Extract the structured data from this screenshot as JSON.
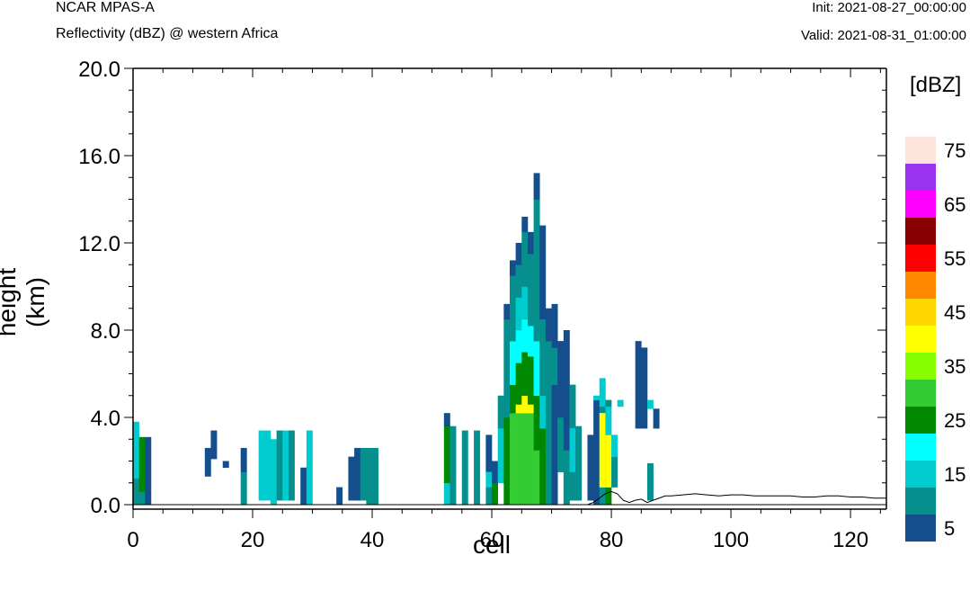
{
  "header": {
    "title": "NCAR MPAS-A",
    "subtitle": "Reflectivity (dBZ) @ western Africa",
    "init": "Init: 2021-08-27_00:00:00",
    "valid": "Valid: 2021-08-31_01:00:00"
  },
  "chart_data": {
    "type": "heatmap",
    "title": "",
    "xlabel": "cell",
    "ylabel": "height (km)",
    "xlim": [
      0,
      126
    ],
    "ylim": [
      0,
      20
    ],
    "x_ticks": [
      0,
      20,
      40,
      60,
      80,
      100,
      120
    ],
    "x_tick_labels": [
      "0",
      "20",
      "40",
      "60",
      "80",
      "100",
      "120"
    ],
    "y_ticks": [
      0,
      4,
      8,
      12,
      16,
      20
    ],
    "y_tick_labels": [
      "0.0",
      "4.0",
      "8.0",
      "12.0",
      "16.0",
      "20.0"
    ],
    "colorbar": {
      "units": "[dBZ]",
      "levels": [
        5,
        10,
        15,
        20,
        25,
        30,
        35,
        40,
        45,
        50,
        55,
        60,
        65,
        70,
        75
      ],
      "labels": [
        "5",
        "15",
        "25",
        "35",
        "45",
        "55",
        "65",
        "75"
      ],
      "colors": [
        "#144e8c",
        "#05908e",
        "#00cccf",
        "#00ffff",
        "#008800",
        "#33cc33",
        "#88ff00",
        "#ffff00",
        "#ffd700",
        "#ff8800",
        "#ff0000",
        "#880000",
        "#ff00ff",
        "#9933ee",
        "#ffe4dc"
      ]
    },
    "cells": [
      [
        0,
        0,
        1.2,
        2
      ],
      [
        0,
        1.2,
        3.1,
        3
      ],
      [
        0,
        3.1,
        3.8,
        3
      ],
      [
        1,
        0,
        0.6,
        2
      ],
      [
        1,
        0.6,
        3.1,
        5
      ],
      [
        2,
        0,
        3.1,
        1
      ],
      [
        12,
        1.3,
        2.6,
        1
      ],
      [
        13,
        2.1,
        3.4,
        1
      ],
      [
        15,
        1.7,
        2.0,
        1
      ],
      [
        18,
        0,
        1.5,
        2
      ],
      [
        18,
        1.5,
        2.6,
        1
      ],
      [
        21,
        0.2,
        3.4,
        3
      ],
      [
        22,
        0.2,
        3.4,
        3
      ],
      [
        23,
        0,
        3.0,
        3
      ],
      [
        24,
        0.2,
        3.4,
        2
      ],
      [
        25,
        0.2,
        3.4,
        3
      ],
      [
        26,
        0.2,
        3.4,
        2
      ],
      [
        28,
        0,
        1.7,
        1
      ],
      [
        29,
        0,
        3.4,
        3
      ],
      [
        34,
        0,
        0.8,
        1
      ],
      [
        36,
        0.2,
        2.2,
        1
      ],
      [
        37,
        0.2,
        2.6,
        1
      ],
      [
        38,
        0.2,
        2.6,
        2
      ],
      [
        39,
        0,
        2.6,
        2
      ],
      [
        40,
        0,
        2.6,
        2
      ],
      [
        52,
        0,
        1.0,
        3
      ],
      [
        52,
        1.0,
        3.6,
        5
      ],
      [
        52,
        3.6,
        4.2,
        1
      ],
      [
        53,
        0,
        3.6,
        2
      ],
      [
        55,
        0,
        3.4,
        2
      ],
      [
        57,
        0,
        3.4,
        2
      ],
      [
        59,
        1.5,
        3.2,
        1
      ],
      [
        59,
        0.8,
        1.5,
        3
      ],
      [
        59,
        0,
        0.8,
        2
      ],
      [
        60,
        0,
        1.0,
        5
      ],
      [
        60,
        1.0,
        2.0,
        1
      ],
      [
        61,
        1.0,
        3.5,
        3
      ],
      [
        61,
        3.5,
        3.8,
        2
      ],
      [
        61,
        3.8,
        5.0,
        2
      ],
      [
        62,
        0,
        4.0,
        5
      ],
      [
        62,
        4.0,
        8.5,
        2
      ],
      [
        62,
        8.5,
        9.2,
        1
      ],
      [
        63,
        0,
        4.2,
        6
      ],
      [
        63,
        4.2,
        5.5,
        5
      ],
      [
        63,
        5.5,
        7.5,
        4
      ],
      [
        63,
        7.5,
        10.5,
        2
      ],
      [
        63,
        10.5,
        11.2,
        1
      ],
      [
        64,
        0,
        4.2,
        6
      ],
      [
        64,
        4.2,
        4.6,
        8
      ],
      [
        64,
        4.6,
        6.5,
        5
      ],
      [
        64,
        6.5,
        8.0,
        4
      ],
      [
        64,
        8.0,
        9.5,
        3
      ],
      [
        64,
        9.5,
        11.0,
        2
      ],
      [
        64,
        11.0,
        12.0,
        1
      ],
      [
        65,
        0,
        4.2,
        6
      ],
      [
        65,
        4.2,
        5.0,
        8
      ],
      [
        65,
        5.0,
        7.0,
        5
      ],
      [
        65,
        7.0,
        8.5,
        4
      ],
      [
        65,
        8.5,
        10.0,
        3
      ],
      [
        65,
        10.0,
        12.5,
        2
      ],
      [
        65,
        12.5,
        13.2,
        1
      ],
      [
        66,
        0,
        4.2,
        6
      ],
      [
        66,
        4.2,
        4.6,
        8
      ],
      [
        66,
        4.6,
        6.8,
        5
      ],
      [
        66,
        6.8,
        8.2,
        4
      ],
      [
        66,
        8.2,
        11.5,
        2
      ],
      [
        66,
        11.5,
        12.5,
        1
      ],
      [
        67,
        0,
        2.5,
        6
      ],
      [
        67,
        2.5,
        5.0,
        5
      ],
      [
        67,
        5.0,
        7.5,
        4
      ],
      [
        67,
        7.5,
        14.0,
        2
      ],
      [
        67,
        14.0,
        15.2,
        1
      ],
      [
        68,
        0,
        3.5,
        5
      ],
      [
        68,
        3.5,
        5.0,
        3
      ],
      [
        68,
        5.0,
        8.5,
        2
      ],
      [
        68,
        8.5,
        12.8,
        1
      ],
      [
        69,
        0,
        4.0,
        2
      ],
      [
        69,
        4.0,
        7.5,
        2
      ],
      [
        69,
        7.5,
        9.0,
        1
      ],
      [
        70,
        0,
        5.5,
        1
      ],
      [
        70,
        5.5,
        7.2,
        2
      ],
      [
        70,
        7.2,
        9.2,
        1
      ],
      [
        71,
        1.5,
        4.0,
        2
      ],
      [
        71,
        4.0,
        7.5,
        1
      ],
      [
        72,
        0,
        2.5,
        2
      ],
      [
        72,
        2.5,
        8.0,
        1
      ],
      [
        73,
        0.2,
        5.5,
        2
      ],
      [
        73,
        1.5,
        3.5,
        3
      ],
      [
        74,
        0.2,
        3.6,
        2
      ],
      [
        76,
        0.2,
        3.2,
        1
      ],
      [
        77,
        0,
        4.8,
        1
      ],
      [
        77,
        4.8,
        5.0,
        3
      ],
      [
        78,
        0,
        4.5,
        2
      ],
      [
        78,
        4.5,
        5.8,
        3
      ],
      [
        78,
        0.8,
        4.2,
        8
      ],
      [
        79,
        0,
        3.2,
        5
      ],
      [
        79,
        0.8,
        3.2,
        8
      ],
      [
        79,
        3.2,
        4.5,
        3
      ],
      [
        79,
        4.5,
        4.8,
        2
      ],
      [
        80,
        0.8,
        2.2,
        2
      ],
      [
        80,
        2.2,
        3.2,
        3
      ],
      [
        81,
        4.5,
        4.8,
        3
      ],
      [
        84,
        3.5,
        7.5,
        1
      ],
      [
        85,
        3.5,
        7.2,
        1
      ],
      [
        86,
        4.4,
        4.8,
        3
      ],
      [
        86,
        0.2,
        1.9,
        2
      ],
      [
        87,
        3.5,
        4.4,
        1
      ]
    ],
    "terrain": [
      [
        76,
        0
      ],
      [
        77,
        0.1
      ],
      [
        78,
        0.3
      ],
      [
        79,
        0.5
      ],
      [
        80,
        0.6
      ],
      [
        81,
        0.5
      ],
      [
        82,
        0.2
      ],
      [
        83,
        0.1
      ],
      [
        84,
        0.2
      ],
      [
        85,
        0.25
      ],
      [
        86,
        0.1
      ],
      [
        87,
        0.2
      ],
      [
        88,
        0.3
      ],
      [
        89,
        0.4
      ],
      [
        90,
        0.4
      ],
      [
        92,
        0.45
      ],
      [
        94,
        0.5
      ],
      [
        96,
        0.45
      ],
      [
        98,
        0.4
      ],
      [
        100,
        0.45
      ],
      [
        102,
        0.45
      ],
      [
        104,
        0.4
      ],
      [
        106,
        0.4
      ],
      [
        108,
        0.4
      ],
      [
        110,
        0.4
      ],
      [
        112,
        0.35
      ],
      [
        114,
        0.35
      ],
      [
        116,
        0.4
      ],
      [
        118,
        0.4
      ],
      [
        120,
        0.35
      ],
      [
        122,
        0.35
      ],
      [
        124,
        0.3
      ],
      [
        126,
        0.3
      ]
    ]
  }
}
